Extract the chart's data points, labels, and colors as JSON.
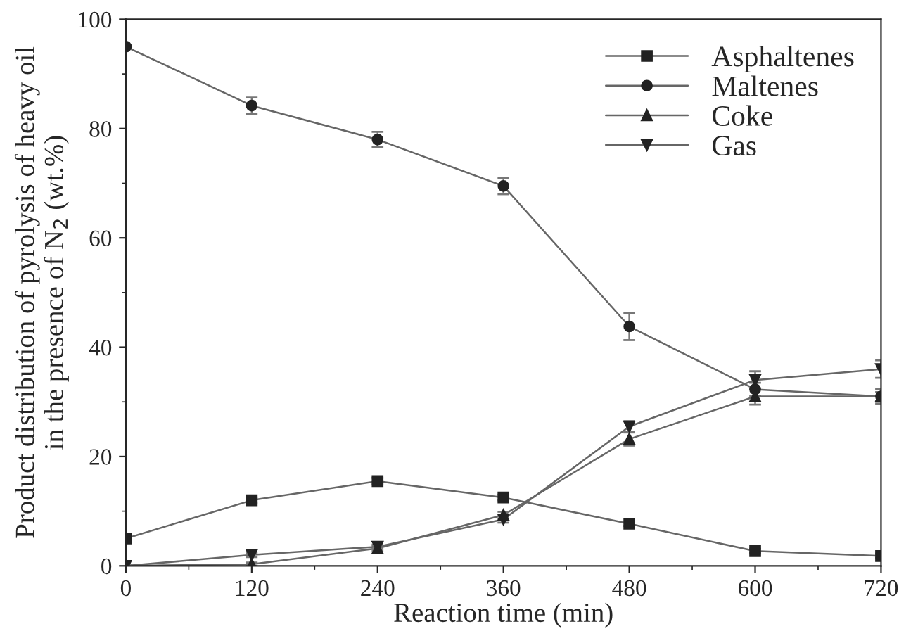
{
  "chart_data": {
    "type": "line",
    "xlabel": "Reaction time (min)",
    "ylabel": "Product distribution of pyrolysis of heavy oil\nin the presence of N$_{2}$ (wt.%)",
    "x": [
      0,
      120,
      240,
      360,
      480,
      600,
      720
    ],
    "series": [
      {
        "name": "Asphaltenes",
        "color": "#222222",
        "marker": "square",
        "values": [
          5,
          12,
          15.5,
          12.5,
          7.7,
          2.7,
          1.8
        ],
        "errors": [
          0.3,
          0.5,
          0.6,
          0.5,
          0.4,
          0.4,
          0.4
        ]
      },
      {
        "name": "Maltenes",
        "color": "#222222",
        "marker": "circle",
        "values": [
          95,
          84.2,
          78,
          69.5,
          43.8,
          32.3,
          31
        ],
        "errors": [
          0.3,
          1.5,
          1.4,
          1.5,
          2.5,
          1.2,
          1.3
        ]
      },
      {
        "name": "Coke",
        "color": "#222222",
        "marker": "triangle",
        "values": [
          0,
          0.3,
          3.2,
          9.3,
          23.2,
          31,
          31
        ],
        "errors": [
          0.2,
          0.3,
          0.4,
          0.6,
          1.2,
          1.5,
          0.8
        ]
      },
      {
        "name": "Gas",
        "color": "#222222",
        "marker": "triangle_down",
        "values": [
          0,
          2,
          3.5,
          8.5,
          25.5,
          34,
          36
        ],
        "errors": [
          0.2,
          0.4,
          0.4,
          0.6,
          1.0,
          1.6,
          1.6
        ]
      }
    ],
    "xlim": [
      0,
      720
    ],
    "xticks": [
      0,
      120,
      240,
      360,
      480,
      600,
      720
    ],
    "ylim": [
      0,
      100
    ],
    "yticks": [
      0,
      20,
      40,
      60,
      80,
      100
    ],
    "grid": false,
    "legend": "top right",
    "line_style": "solid"
  }
}
